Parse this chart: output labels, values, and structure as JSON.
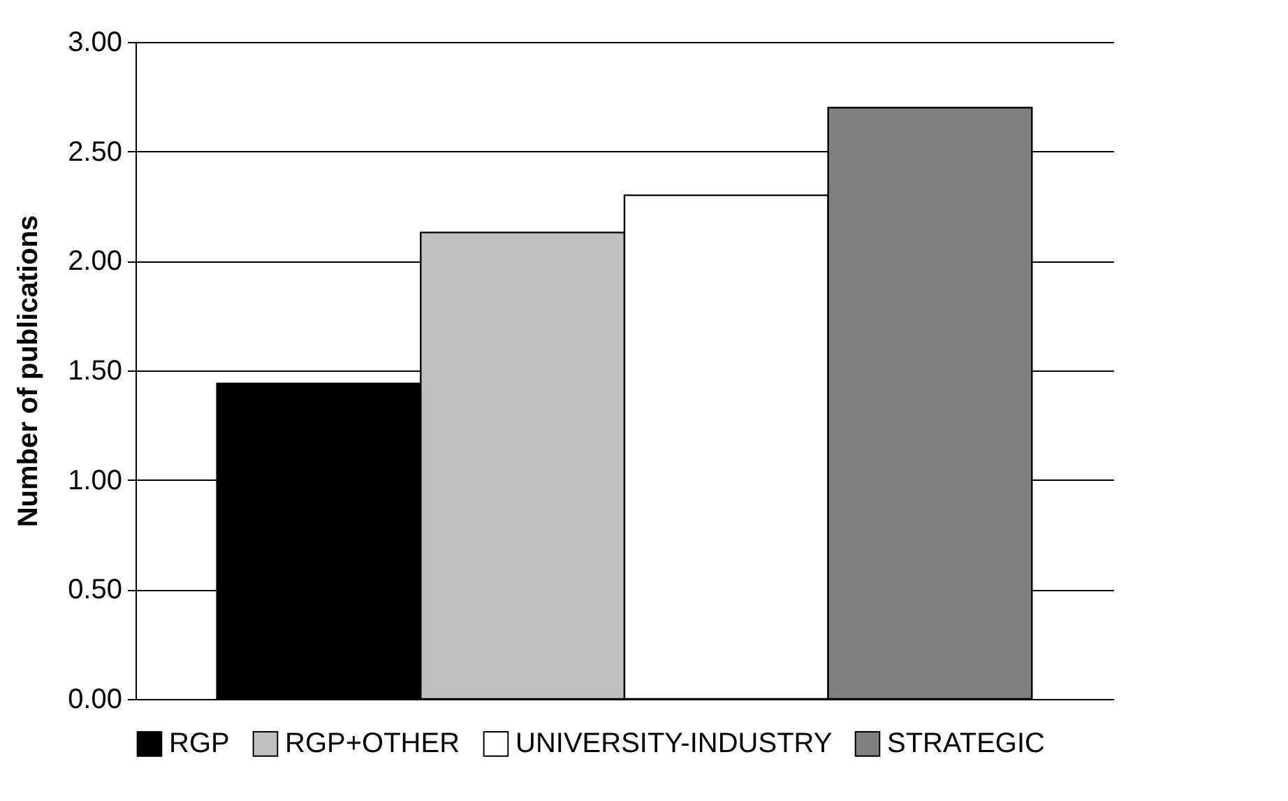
{
  "chart_data": {
    "type": "bar",
    "ylabel": "Number of publications",
    "categories": [
      null
    ],
    "series": [
      {
        "name": "RGP",
        "color": "#000000",
        "values": [
          1.44
        ]
      },
      {
        "name": "RGP+OTHER",
        "color": "#c0c0c0",
        "values": [
          2.13
        ]
      },
      {
        "name": "UNIVERSITY-INDUSTRY",
        "color": "#ffffff",
        "values": [
          2.3
        ]
      },
      {
        "name": "STRATEGIC",
        "color": "#808080",
        "values": [
          2.7
        ]
      }
    ],
    "ylim": [
      0,
      3
    ],
    "yticks": [
      {
        "value": 0,
        "label": "0.00"
      },
      {
        "value": 0.5,
        "label": "0.50"
      },
      {
        "value": 1,
        "label": "1.00"
      },
      {
        "value": 1.5,
        "label": "1.50"
      },
      {
        "value": 2,
        "label": "2.00"
      },
      {
        "value": 2.5,
        "label": "2.50"
      },
      {
        "value": 3,
        "label": "3.00"
      }
    ],
    "grid": true,
    "legend": "bottom"
  }
}
